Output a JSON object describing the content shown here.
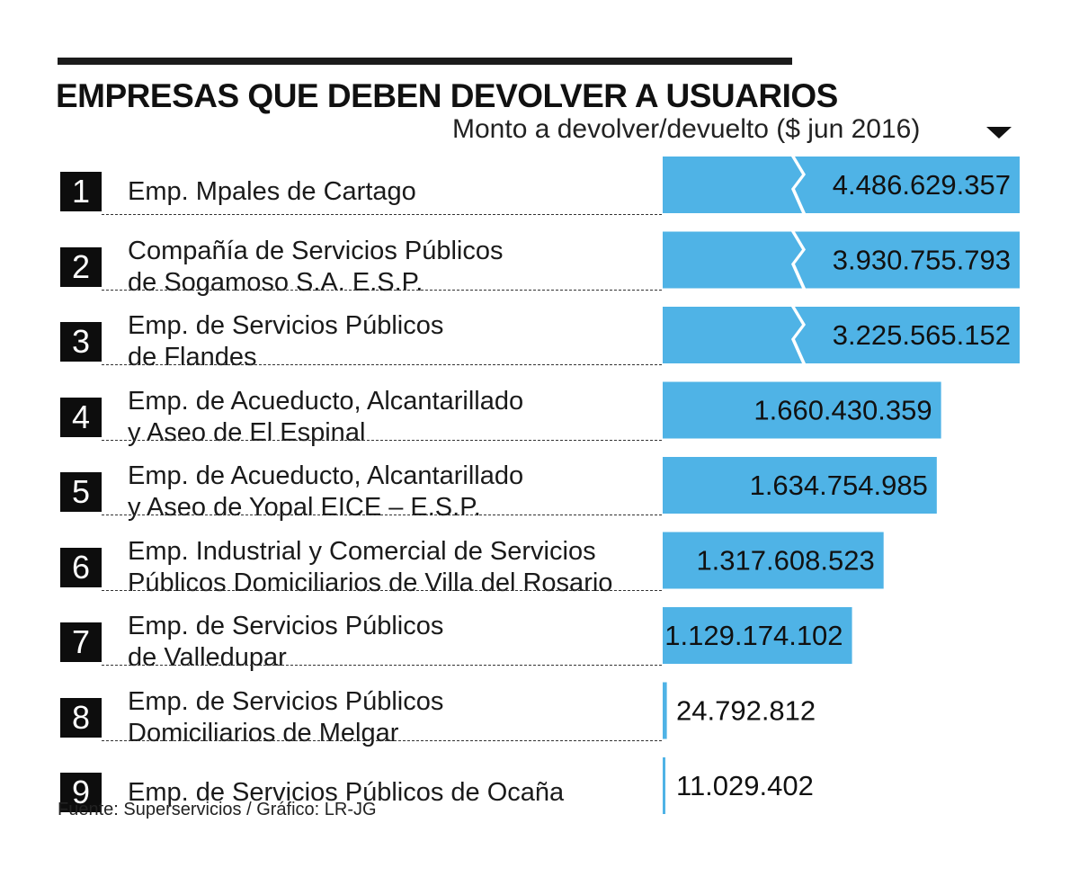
{
  "header": {
    "title": "EMPRESAS QUE DEBEN DEVOLVER A USUARIOS",
    "subtitle": "Monto a devolver/devuelto ($ jun 2016)",
    "source": "Fuente: Superservicios / Gráfico: LR-JG"
  },
  "colors": {
    "bar": "#4fb3e6",
    "badge": "#0d0d0d",
    "text": "#111111"
  },
  "chart_data": {
    "type": "bar",
    "orientation": "horizontal",
    "title": "EMPRESAS QUE DEBEN DEVOLVER A USUARIOS",
    "xlabel": "Monto a devolver/devuelto ($ jun 2016)",
    "ylabel": "",
    "axis_break": "bars 1-3 truncated (broken bars)",
    "ranks": [
      "1",
      "2",
      "3",
      "4",
      "5",
      "6",
      "7",
      "8",
      "9"
    ],
    "categories": [
      [
        "Emp. Mpales de Cartago"
      ],
      [
        "Compañía de Servicios Públicos",
        "de Sogamoso S.A. E.S.P."
      ],
      [
        "Emp. de Servicios Públicos",
        "de Flandes"
      ],
      [
        "Emp. de Acueducto, Alcantarillado",
        "y Aseo de El Espinal"
      ],
      [
        "Emp. de Acueducto, Alcantarillado",
        "y Aseo de Yopal EICE – E.S.P."
      ],
      [
        "Emp. Industrial y Comercial de Servicios",
        "Públicos Domiciliarios de Villa del Rosario"
      ],
      [
        "Emp. de Servicios Públicos",
        "de Valledupar"
      ],
      [
        "Emp. de Servicios Públicos",
        "Domiciliarios de Melgar"
      ],
      [
        "Emp. de Servicios Públicos de Ocaña"
      ]
    ],
    "values": [
      4486629357,
      3930755793,
      3225565152,
      1660430359,
      1634754985,
      1317608523,
      1129174102,
      24792812,
      11029402
    ],
    "value_labels": [
      "4.486.629.357",
      "3.930.755.793",
      "3.225.565.152",
      "1.660.430.359",
      "1.634.754.985",
      "1.317.608.523",
      "1.129.174.102",
      "24.792.812",
      "11.029.402"
    ],
    "broken": [
      true,
      true,
      true,
      false,
      false,
      false,
      false,
      false,
      false
    ]
  }
}
